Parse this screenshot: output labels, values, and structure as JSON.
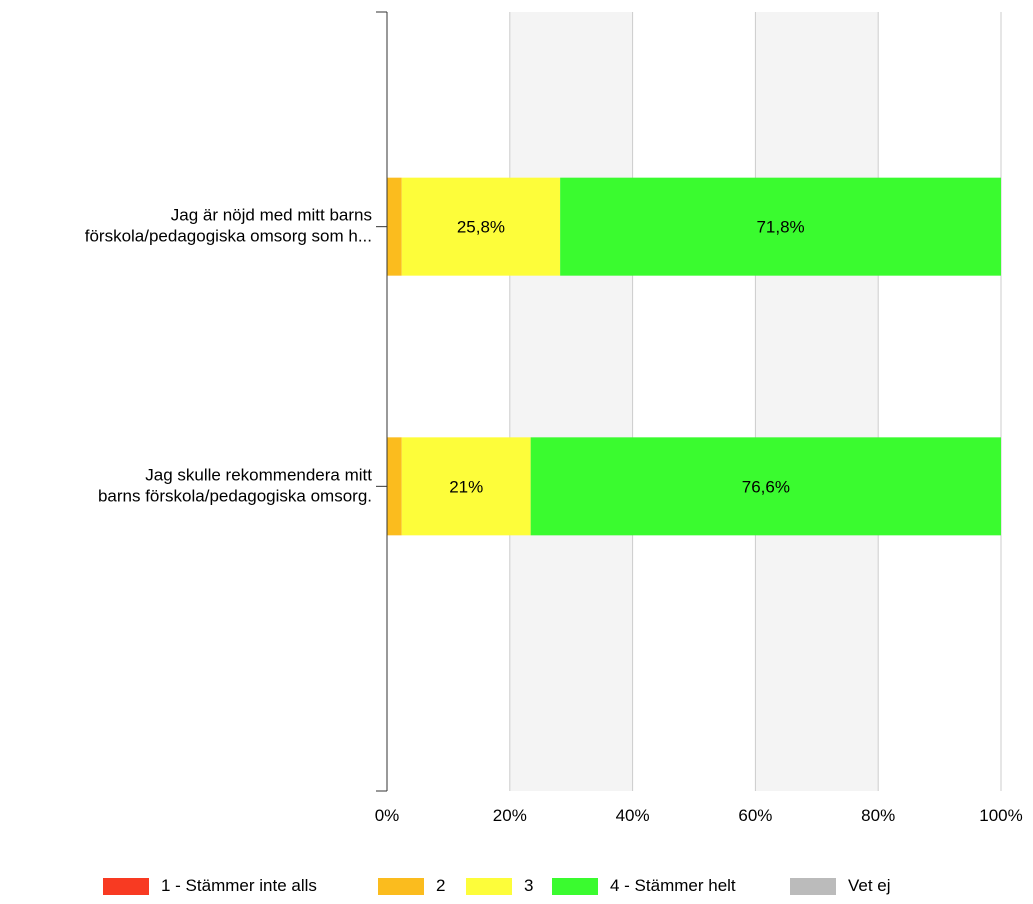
{
  "chart_data": {
    "type": "bar",
    "orientation": "horizontal",
    "stacked": true,
    "categories": [
      "Jag är nöjd med mitt barns förskola/pedagogiska omsorg som h...",
      "Jag skulle rekommendera mitt barns förskola/pedagogiska omsorg."
    ],
    "category_lines": [
      [
        "Jag är nöjd med mitt barns",
        "förskola/pedagogiska omsorg som h..."
      ],
      [
        "Jag skulle rekommendera mitt",
        "barns förskola/pedagogiska omsorg."
      ]
    ],
    "series": [
      {
        "name": "1 - Stämmer inte alls",
        "color": "#f83a22",
        "values": [
          0,
          0
        ],
        "labels": [
          "",
          ""
        ]
      },
      {
        "name": "2",
        "color": "#fbbc1e",
        "values": [
          2.4,
          2.4
        ],
        "labels": [
          "",
          ""
        ]
      },
      {
        "name": "3",
        "color": "#fdfd3a",
        "values": [
          25.8,
          21
        ],
        "labels": [
          "25,8%",
          "21%"
        ]
      },
      {
        "name": "4 - Stämmer helt",
        "color": "#3afb2f",
        "values": [
          71.8,
          76.6
        ],
        "labels": [
          "71,8%",
          "76,6%"
        ]
      },
      {
        "name": "Vet ej",
        "color": "#bbbbbb",
        "values": [
          0,
          0
        ],
        "labels": [
          "",
          ""
        ]
      }
    ],
    "xlim": [
      0,
      100
    ],
    "xticks": [
      "0%",
      "20%",
      "40%",
      "60%",
      "80%",
      "100%"
    ],
    "grid": true,
    "alternating_bands": true,
    "legend_position": "bottom"
  }
}
